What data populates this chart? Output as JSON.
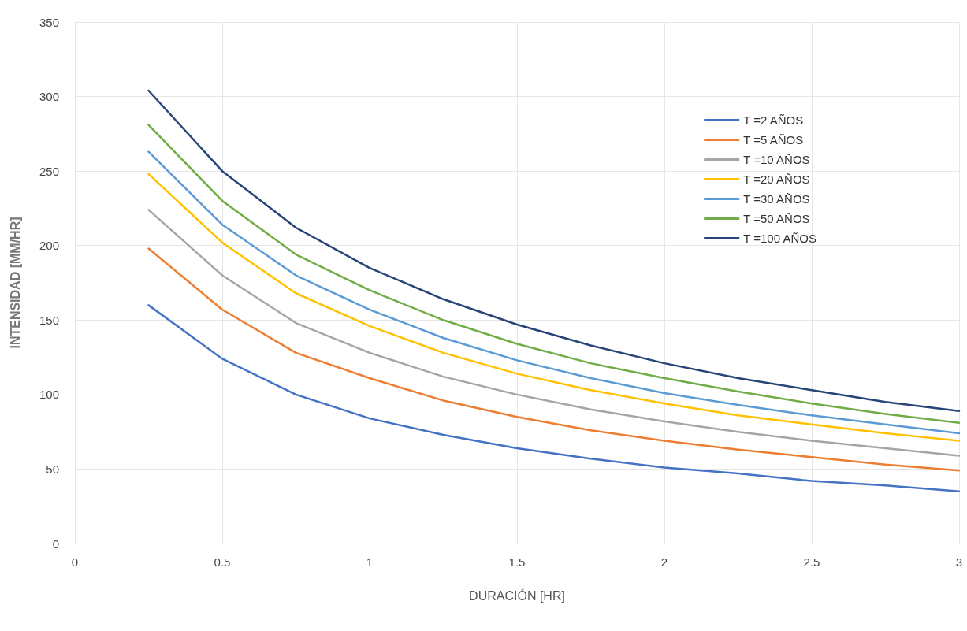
{
  "chart_data": {
    "type": "line",
    "xlabel": "DURACIÓN [HR]",
    "ylabel": "INTENSIDAD [MM/HR]",
    "x": [
      0.25,
      0.5,
      0.75,
      1,
      1.25,
      1.5,
      1.75,
      2,
      2.25,
      2.5,
      2.75,
      3
    ],
    "series": [
      {
        "name": "T =2 AÑOS",
        "color": "#4472c4",
        "values": [
          160,
          124,
          100,
          84,
          73,
          64,
          57,
          51,
          47,
          42,
          39,
          35
        ]
      },
      {
        "name": "T =5 AÑOS",
        "color": "#ed7d31",
        "values": [
          198,
          157,
          128,
          111,
          96,
          85,
          76,
          69,
          63,
          58,
          53,
          49
        ]
      },
      {
        "name": "T =10 AÑOS",
        "color": "#a5a5a5",
        "values": [
          224,
          180,
          148,
          128,
          112,
          100,
          90,
          82,
          75,
          69,
          64,
          59
        ]
      },
      {
        "name": "T =20 AÑOS",
        "color": "#ffc000",
        "values": [
          248,
          202,
          168,
          146,
          128,
          114,
          103,
          94,
          86,
          80,
          74,
          69
        ]
      },
      {
        "name": "T =30 AÑOS",
        "color": "#5b9bd5",
        "values": [
          263,
          214,
          180,
          157,
          138,
          123,
          111,
          101,
          93,
          86,
          80,
          74
        ]
      },
      {
        "name": "T =50 AÑOS",
        "color": "#70ad47",
        "values": [
          281,
          230,
          194,
          170,
          150,
          134,
          121,
          111,
          102,
          94,
          87,
          81
        ]
      },
      {
        "name": "T =100 AÑOS",
        "color": "#264478",
        "values": [
          304,
          250,
          212,
          185,
          164,
          147,
          133,
          121,
          111,
          103,
          95,
          89
        ]
      }
    ],
    "xlim": [
      0,
      3
    ],
    "xticks": [
      0,
      0.5,
      1,
      1.5,
      2,
      2.5,
      3
    ],
    "ylim": [
      0,
      350
    ],
    "yticks": [
      0,
      50,
      100,
      150,
      200,
      250,
      300,
      350
    ],
    "grid": true,
    "legend": "top right",
    "marker": "none",
    "line_style": "solid"
  }
}
